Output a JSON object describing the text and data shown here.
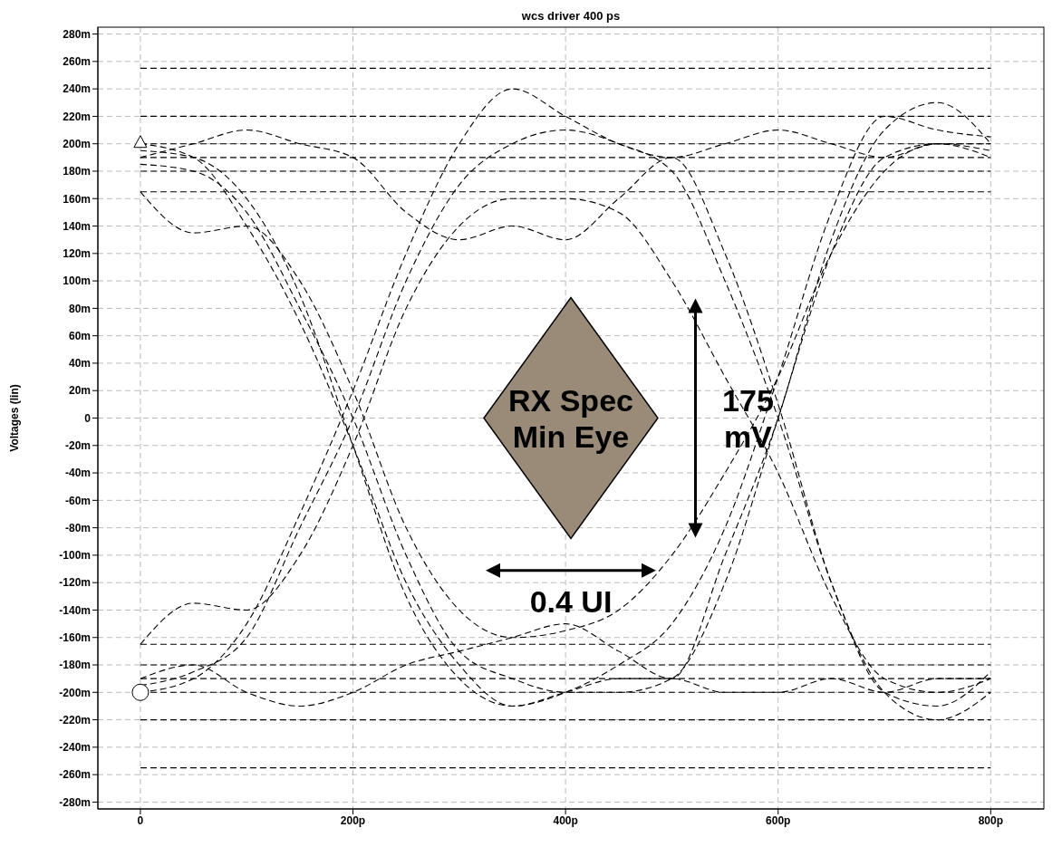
{
  "chart_data": {
    "type": "line",
    "title": "wcs driver 400 ps",
    "ylabel": "Voltages (lin)",
    "x": [
      0,
      50,
      100,
      150,
      200,
      250,
      300,
      350,
      400,
      450,
      500,
      550,
      600,
      650,
      700,
      750,
      800
    ],
    "xlim": [
      -40,
      850
    ],
    "xticks": [
      {
        "value": 0,
        "label": "0"
      },
      {
        "value": 200,
        "label": "200p"
      },
      {
        "value": 400,
        "label": "400p"
      },
      {
        "value": 600,
        "label": "600p"
      },
      {
        "value": 800,
        "label": "800p"
      }
    ],
    "ylim": [
      -285,
      285
    ],
    "yticks": [
      {
        "value": -280,
        "label": "-280m"
      },
      {
        "value": -260,
        "label": "-260m"
      },
      {
        "value": -240,
        "label": "-240m"
      },
      {
        "value": -220,
        "label": "-220m"
      },
      {
        "value": -200,
        "label": "-200m"
      },
      {
        "value": -180,
        "label": "-180m"
      },
      {
        "value": -160,
        "label": "-160m"
      },
      {
        "value": -140,
        "label": "-140m"
      },
      {
        "value": -120,
        "label": "-120m"
      },
      {
        "value": -100,
        "label": "-100m"
      },
      {
        "value": -80,
        "label": "-80m"
      },
      {
        "value": -60,
        "label": "-60m"
      },
      {
        "value": -40,
        "label": "-40m"
      },
      {
        "value": -20,
        "label": "-20m"
      },
      {
        "value": 0,
        "label": "0"
      },
      {
        "value": 20,
        "label": "20m"
      },
      {
        "value": 40,
        "label": "40m"
      },
      {
        "value": 60,
        "label": "60m"
      },
      {
        "value": 80,
        "label": "80m"
      },
      {
        "value": 100,
        "label": "100m"
      },
      {
        "value": 120,
        "label": "120m"
      },
      {
        "value": 140,
        "label": "140m"
      },
      {
        "value": 160,
        "label": "160m"
      },
      {
        "value": 180,
        "label": "180m"
      },
      {
        "value": 200,
        "label": "200m"
      },
      {
        "value": 220,
        "label": "220m"
      },
      {
        "value": 240,
        "label": "240m"
      },
      {
        "value": 260,
        "label": "260m"
      },
      {
        "value": 280,
        "label": "280m"
      }
    ],
    "grid": true,
    "line_style": "dashed",
    "series": [
      {
        "color": "#000000",
        "values": [
          200,
          200,
          200,
          200,
          200,
          200,
          200,
          200,
          200,
          200,
          200,
          200,
          200,
          200,
          200,
          200,
          200
        ]
      },
      {
        "color": "#000000",
        "values": [
          -200,
          -200,
          -200,
          -200,
          -200,
          -200,
          -200,
          -200,
          -200,
          -200,
          -200,
          -200,
          -200,
          -200,
          -200,
          -200,
          -200
        ]
      },
      {
        "color": "#000000",
        "values": [
          255,
          255,
          255,
          255,
          255,
          255,
          255,
          255,
          255,
          255,
          255,
          255,
          255,
          255,
          255,
          255,
          255
        ]
      },
      {
        "color": "#000000",
        "values": [
          220,
          220,
          220,
          220,
          220,
          220,
          220,
          220,
          220,
          220,
          220,
          220,
          220,
          220,
          220,
          220,
          220
        ]
      },
      {
        "color": "#000000",
        "values": [
          190,
          190,
          190,
          190,
          190,
          190,
          190,
          190,
          190,
          190,
          190,
          190,
          190,
          190,
          190,
          190,
          190
        ]
      },
      {
        "color": "#000000",
        "values": [
          180,
          180,
          180,
          180,
          180,
          180,
          180,
          180,
          180,
          180,
          180,
          180,
          180,
          180,
          180,
          180,
          180
        ]
      },
      {
        "color": "#000000",
        "values": [
          165,
          165,
          165,
          165,
          165,
          165,
          165,
          165,
          165,
          165,
          165,
          165,
          165,
          165,
          165,
          165,
          165
        ]
      },
      {
        "color": "#000000",
        "values": [
          -255,
          -255,
          -255,
          -255,
          -255,
          -255,
          -255,
          -255,
          -255,
          -255,
          -255,
          -255,
          -255,
          -255,
          -255,
          -255,
          -255
        ]
      },
      {
        "color": "#000000",
        "values": [
          -220,
          -220,
          -220,
          -220,
          -220,
          -220,
          -220,
          -220,
          -220,
          -220,
          -220,
          -220,
          -220,
          -220,
          -220,
          -220,
          -220
        ]
      },
      {
        "color": "#000000",
        "values": [
          -190,
          -190,
          -190,
          -190,
          -190,
          -190,
          -190,
          -190,
          -190,
          -190,
          -190,
          -190,
          -190,
          -190,
          -190,
          -190,
          -190
        ]
      },
      {
        "color": "#000000",
        "values": [
          -180,
          -180,
          -180,
          -180,
          -180,
          -180,
          -180,
          -180,
          -180,
          -180,
          -180,
          -180,
          -180,
          -180,
          -180,
          -180,
          -180
        ]
      },
      {
        "color": "#000000",
        "values": [
          -165,
          -165,
          -165,
          -165,
          -165,
          -165,
          -165,
          -165,
          -165,
          -165,
          -165,
          -165,
          -165,
          -165,
          -165,
          -165,
          -165
        ]
      },
      {
        "color": "#000000",
        "values": [
          185,
          180,
          150,
          80,
          0,
          -100,
          -170,
          -190,
          -200,
          -200,
          -190,
          -120,
          0,
          120,
          190,
          200,
          195
        ]
      },
      {
        "color": "#000000",
        "values": [
          -195,
          -185,
          -160,
          -80,
          0,
          100,
          170,
          200,
          210,
          200,
          180,
          100,
          0,
          -120,
          -200,
          -210,
          -185
        ]
      },
      {
        "color": "#000000",
        "values": [
          200,
          190,
          140,
          70,
          -20,
          -120,
          -180,
          -210,
          -200,
          -190,
          -190,
          -200,
          -200,
          -190,
          -200,
          -190,
          -190
        ]
      },
      {
        "color": "#000000",
        "values": [
          -200,
          -190,
          -150,
          -70,
          20,
          120,
          200,
          240,
          220,
          200,
          190,
          200,
          210,
          200,
          190,
          200,
          200
        ]
      },
      {
        "color": "#000000",
        "values": [
          190,
          200,
          210,
          200,
          190,
          150,
          130,
          140,
          130,
          160,
          190,
          120,
          10,
          -120,
          -200,
          -220,
          -200
        ]
      },
      {
        "color": "#000000",
        "values": [
          -190,
          -180,
          -200,
          -210,
          -200,
          -180,
          -170,
          -160,
          -150,
          -170,
          -190,
          -100,
          0,
          130,
          210,
          230,
          200
        ]
      },
      {
        "color": "#000000",
        "values": [
          195,
          190,
          160,
          90,
          -20,
          -130,
          -190,
          -210,
          -200,
          -180,
          -150,
          -80,
          30,
          150,
          220,
          210,
          205
        ]
      },
      {
        "color": "#000000",
        "values": [
          165,
          135,
          140,
          100,
          20,
          -80,
          -140,
          -160,
          -155,
          -140,
          -100,
          -40,
          30,
          120,
          180,
          200,
          190
        ]
      },
      {
        "color": "#000000",
        "values": [
          -165,
          -135,
          -140,
          -100,
          -20,
          80,
          140,
          160,
          160,
          150,
          100,
          30,
          -40,
          -130,
          -190,
          -200,
          -190
        ]
      }
    ],
    "annotations": [
      "RX Spec Min Eye",
      "175 mV",
      "0.4 UI"
    ]
  }
}
